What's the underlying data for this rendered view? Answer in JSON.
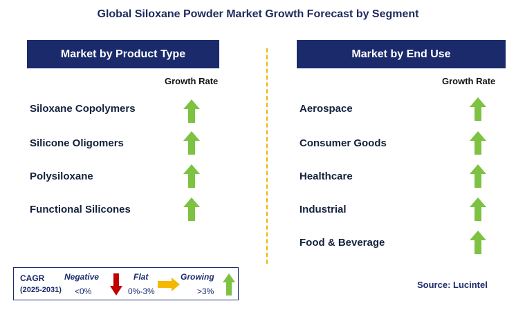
{
  "title": "Global Siloxane Powder Market Growth Forecast by Segment",
  "colors": {
    "header_bg": "#1b2a6b",
    "growing": "#7dc242",
    "negative": "#c00000",
    "flat": "#f5b800",
    "divider": "#f0b400"
  },
  "left_panel": {
    "header": "Market by Product Type",
    "growth_rate_label": "Growth Rate",
    "items": [
      {
        "label": "Siloxane Copolymers",
        "trend": "growing"
      },
      {
        "label": "Silicone Oligomers",
        "trend": "growing"
      },
      {
        "label": "Polysiloxane",
        "trend": "growing"
      },
      {
        "label": "Functional Silicones",
        "trend": "growing"
      }
    ]
  },
  "right_panel": {
    "header": "Market by End Use",
    "growth_rate_label": "Growth Rate",
    "items": [
      {
        "label": "Aerospace",
        "trend": "growing"
      },
      {
        "label": "Consumer Goods",
        "trend": "growing"
      },
      {
        "label": "Healthcare",
        "trend": "growing"
      },
      {
        "label": "Industrial",
        "trend": "growing"
      },
      {
        "label": "Food & Beverage",
        "trend": "growing"
      }
    ]
  },
  "legend": {
    "cagr": "CAGR",
    "years": "(2025-2031)",
    "negative_label": "Negative",
    "negative_value": "<0%",
    "flat_label": "Flat",
    "flat_value": "0%-3%",
    "growing_label": "Growing",
    "growing_value": ">3%",
    "icons": [
      "down-arrow-icon",
      "right-arrow-icon",
      "up-arrow-icon"
    ]
  },
  "source": "Source: Lucintel"
}
